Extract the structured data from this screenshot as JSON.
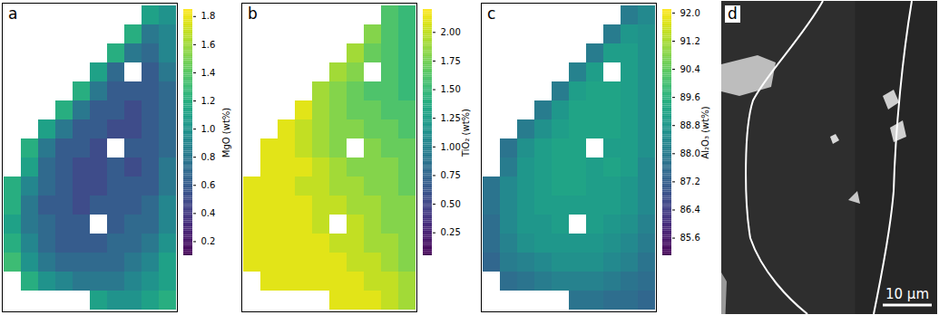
{
  "chart_data": [
    {
      "type": "heatmap",
      "panel_label": "a",
      "colorbar_label": "MgO (wt%)",
      "color": "viridis",
      "colorbar_range": [
        0.1,
        1.85
      ],
      "colorbar_ticks": [
        0.2,
        0.4,
        0.6,
        0.8,
        {
          "value": 1,
          "label": "1.0"
        },
        1.2,
        1.4,
        1.6,
        1.8
      ],
      "cells": [
        [
          null,
          null,
          null,
          null,
          null,
          null,
          null,
          null,
          1.1,
          1.0
        ],
        [
          null,
          null,
          null,
          null,
          null,
          null,
          null,
          1.2,
          0.8,
          0.9
        ],
        [
          null,
          null,
          null,
          null,
          null,
          null,
          1.2,
          0.8,
          0.7,
          0.9
        ],
        [
          null,
          null,
          null,
          null,
          null,
          1.1,
          0.7,
          null,
          0.6,
          0.8
        ],
        [
          null,
          null,
          null,
          null,
          1.2,
          0.8,
          0.6,
          0.6,
          0.6,
          0.7
        ],
        [
          null,
          null,
          null,
          1.2,
          0.8,
          0.6,
          0.6,
          0.5,
          0.6,
          0.7
        ],
        [
          null,
          null,
          1.1,
          0.8,
          0.6,
          0.6,
          0.5,
          0.5,
          0.6,
          0.7
        ],
        [
          null,
          1.2,
          0.8,
          0.6,
          0.6,
          0.5,
          null,
          0.6,
          0.6,
          0.7
        ],
        [
          null,
          1.1,
          0.7,
          0.6,
          0.5,
          0.5,
          0.6,
          0.5,
          0.6,
          0.8
        ],
        [
          1.2,
          0.9,
          0.7,
          0.6,
          0.5,
          0.5,
          0.6,
          0.6,
          0.6,
          0.8
        ],
        [
          1.2,
          0.8,
          0.6,
          0.6,
          0.5,
          0.6,
          0.6,
          0.6,
          0.7,
          0.9
        ],
        [
          1.1,
          0.8,
          0.7,
          0.6,
          0.6,
          null,
          0.6,
          0.7,
          0.7,
          0.9
        ],
        [
          1.2,
          0.9,
          0.7,
          0.6,
          0.6,
          0.6,
          0.7,
          0.7,
          0.8,
          1.0
        ],
        [
          1.3,
          1.0,
          0.8,
          0.7,
          0.7,
          0.7,
          0.7,
          0.8,
          0.9,
          1.1
        ],
        [
          null,
          1.2,
          1.0,
          0.9,
          0.8,
          0.8,
          0.8,
          0.9,
          1.0,
          1.1
        ],
        [
          null,
          null,
          null,
          null,
          null,
          1.1,
          1.0,
          1.0,
          1.1,
          1.2
        ]
      ]
    },
    {
      "type": "heatmap",
      "panel_label": "b",
      "colorbar_label": "TiO₂ (wt%)",
      "color": "viridis",
      "colorbar_range": [
        0.05,
        2.2
      ],
      "colorbar_ticks": [
        0.25,
        {
          "value": 0.5,
          "label": "0.50"
        },
        0.75,
        {
          "value": 1,
          "label": "1.00"
        },
        1.25,
        {
          "value": 1.5,
          "label": "1.50"
        },
        1.75,
        {
          "value": 2,
          "label": "2.00"
        }
      ],
      "cells": [
        [
          null,
          null,
          null,
          null,
          null,
          null,
          null,
          null,
          1.6,
          1.5
        ],
        [
          null,
          null,
          null,
          null,
          null,
          null,
          null,
          1.8,
          1.6,
          1.5
        ],
        [
          null,
          null,
          null,
          null,
          null,
          null,
          1.9,
          1.7,
          1.6,
          1.5
        ],
        [
          null,
          null,
          null,
          null,
          null,
          1.9,
          1.8,
          null,
          1.6,
          1.5
        ],
        [
          null,
          null,
          null,
          null,
          1.9,
          1.8,
          1.7,
          1.6,
          1.6,
          1.5
        ],
        [
          null,
          null,
          null,
          2.1,
          1.9,
          1.8,
          1.7,
          1.7,
          1.6,
          1.6
        ],
        [
          null,
          null,
          2.1,
          2.0,
          1.9,
          1.8,
          1.8,
          1.7,
          1.7,
          1.6
        ],
        [
          null,
          2.1,
          2.1,
          2.0,
          1.9,
          1.8,
          null,
          1.8,
          1.7,
          1.7
        ],
        [
          null,
          2.1,
          2.1,
          2.1,
          2.0,
          1.9,
          1.8,
          1.8,
          1.8,
          1.7
        ],
        [
          2.1,
          2.1,
          2.1,
          2.0,
          2.0,
          1.9,
          1.9,
          1.8,
          1.8,
          1.7
        ],
        [
          2.1,
          2.1,
          2.1,
          2.1,
          2.0,
          2.0,
          1.9,
          1.9,
          1.8,
          1.8
        ],
        [
          2.1,
          2.1,
          2.1,
          2.1,
          2.0,
          null,
          2.0,
          1.9,
          1.8,
          1.8
        ],
        [
          2.1,
          2.1,
          2.1,
          2.1,
          2.1,
          2.0,
          2.0,
          1.9,
          1.9,
          1.8
        ],
        [
          2.1,
          2.1,
          2.1,
          2.1,
          2.1,
          2.1,
          2.0,
          2.0,
          1.9,
          1.8
        ],
        [
          null,
          2.1,
          2.1,
          2.1,
          2.1,
          2.1,
          2.1,
          2.0,
          2.0,
          1.9
        ],
        [
          null,
          null,
          null,
          null,
          null,
          2.1,
          2.1,
          2.1,
          2.0,
          1.9
        ]
      ]
    },
    {
      "type": "heatmap",
      "panel_label": "c",
      "colorbar_label": "Al₂O₃ (wt%)",
      "color": "viridis",
      "colorbar_range": [
        85.1,
        92.1
      ],
      "colorbar_ticks": [
        85.6,
        86.4,
        87.2,
        {
          "value": 88,
          "label": "88.0"
        },
        88.8,
        89.6,
        90.4,
        91.2,
        {
          "value": 92,
          "label": "92.0"
        }
      ],
      "cells": [
        [
          null,
          null,
          null,
          null,
          null,
          null,
          null,
          null,
          88.0,
          88.4
        ],
        [
          null,
          null,
          null,
          null,
          null,
          null,
          null,
          88.0,
          88.8,
          88.6
        ],
        [
          null,
          null,
          null,
          null,
          null,
          null,
          88.0,
          89.0,
          89.0,
          88.6
        ],
        [
          null,
          null,
          null,
          null,
          null,
          88.2,
          89.0,
          null,
          89.0,
          88.6
        ],
        [
          null,
          null,
          null,
          null,
          88.0,
          89.0,
          89.2,
          89.2,
          89.0,
          88.6
        ],
        [
          null,
          null,
          null,
          88.0,
          88.8,
          89.2,
          89.2,
          89.2,
          89.0,
          88.6
        ],
        [
          null,
          null,
          88.0,
          88.6,
          89.0,
          89.2,
          89.2,
          89.2,
          89.0,
          88.6
        ],
        [
          null,
          87.8,
          88.6,
          89.0,
          89.2,
          89.2,
          null,
          89.0,
          89.0,
          88.6
        ],
        [
          null,
          88.0,
          88.8,
          89.0,
          89.2,
          89.2,
          89.0,
          89.2,
          89.0,
          88.4
        ],
        [
          87.8,
          88.4,
          88.8,
          89.0,
          89.2,
          89.2,
          89.0,
          89.0,
          88.8,
          88.4
        ],
        [
          87.8,
          88.4,
          88.8,
          89.0,
          89.0,
          89.0,
          89.0,
          89.0,
          88.8,
          88.4
        ],
        [
          87.6,
          88.4,
          88.8,
          88.8,
          89.0,
          null,
          89.0,
          88.8,
          88.6,
          88.2
        ],
        [
          87.6,
          88.2,
          88.6,
          88.8,
          88.8,
          88.8,
          88.8,
          88.6,
          88.4,
          88.0
        ],
        [
          87.4,
          88.0,
          88.2,
          88.4,
          88.6,
          88.6,
          88.6,
          88.4,
          88.2,
          87.8
        ],
        [
          null,
          87.6,
          87.8,
          88.0,
          88.2,
          88.2,
          88.2,
          88.0,
          87.8,
          87.6
        ],
        [
          null,
          null,
          null,
          null,
          null,
          87.8,
          87.8,
          87.6,
          87.6,
          87.4
        ]
      ]
    },
    {
      "type": "image",
      "panel_label": "d",
      "scale_bar": "10 µm"
    }
  ]
}
